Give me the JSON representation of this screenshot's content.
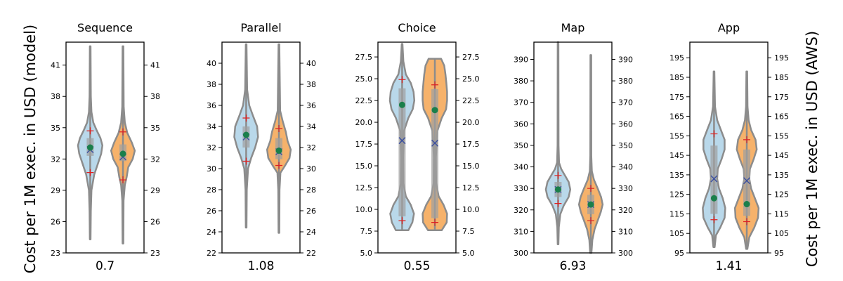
{
  "figure": {
    "ylabel_left": "Cost per 1M exec. in USD (model)",
    "ylabel_right": "Cost per 1M exec. in USD (AWS)"
  },
  "colors": {
    "left_violin": "#b9d8ea",
    "right_violin": "#f6b26b",
    "outline": "#8c8c8c",
    "box": "#a0a0a0",
    "median": "#1a7f4b",
    "mean": "#3b4fa0",
    "percentile": "#e02020"
  },
  "chart_data": [
    {
      "type": "violin",
      "title": "Sequence",
      "xlabel": "0.7",
      "ylim": [
        23,
        43.2
      ],
      "yticks": [
        23,
        26,
        29,
        32,
        35,
        38,
        41
      ],
      "right_yticks": [
        23,
        26,
        29,
        32,
        35,
        38,
        41
      ],
      "series": [
        {
          "min": 24.3,
          "max": 42.8,
          "q1": 32.3,
          "q3": 34.0,
          "median": 33.1,
          "mean": 32.9,
          "p_low": 30.7,
          "p_high": 34.7,
          "shape": [
            [
              24.3,
              0.03
            ],
            [
              27,
              0.05
            ],
            [
              29,
              0.1
            ],
            [
              30.5,
              0.32
            ],
            [
              31.5,
              0.6
            ],
            [
              32.5,
              0.88
            ],
            [
              33.3,
              0.98
            ],
            [
              34,
              0.82
            ],
            [
              34.8,
              0.5
            ],
            [
              35.5,
              0.25
            ],
            [
              36.5,
              0.1
            ],
            [
              38,
              0.05
            ],
            [
              42.8,
              0.03
            ]
          ]
        },
        {
          "min": 23.9,
          "max": 42.8,
          "q1": 31.8,
          "q3": 33.4,
          "median": 32.5,
          "mean": 32.2,
          "p_low": 30.0,
          "p_high": 34.6,
          "shape": [
            [
              23.9,
              0.03
            ],
            [
              28,
              0.05
            ],
            [
              29.5,
              0.15
            ],
            [
              30.3,
              0.3
            ],
            [
              31.2,
              0.42
            ],
            [
              32,
              0.78
            ],
            [
              32.8,
              0.95
            ],
            [
              33.6,
              0.7
            ],
            [
              34.5,
              0.35
            ],
            [
              35.5,
              0.15
            ],
            [
              37,
              0.06
            ],
            [
              42.8,
              0.03
            ]
          ]
        }
      ]
    },
    {
      "type": "violin",
      "title": "Parallel",
      "xlabel": "1.08",
      "ylim": [
        22,
        42
      ],
      "yticks": [
        22,
        24,
        26,
        28,
        30,
        32,
        34,
        36,
        38,
        40
      ],
      "right_yticks": [
        22,
        24,
        26,
        28,
        30,
        32,
        34,
        36,
        38,
        40
      ],
      "series": [
        {
          "min": 24.4,
          "max": 41.8,
          "q1": 32.0,
          "q3": 34.0,
          "median": 33.2,
          "mean": 33.0,
          "p_low": 30.7,
          "p_high": 34.8,
          "shape": [
            [
              24.4,
              0.03
            ],
            [
              28,
              0.05
            ],
            [
              30,
              0.15
            ],
            [
              31,
              0.4
            ],
            [
              32,
              0.72
            ],
            [
              33,
              0.95
            ],
            [
              34,
              0.88
            ],
            [
              35,
              0.55
            ],
            [
              36,
              0.25
            ],
            [
              37.5,
              0.08
            ],
            [
              41.8,
              0.03
            ]
          ]
        },
        {
          "min": 23.9,
          "max": 41.8,
          "q1": 30.9,
          "q3": 32.9,
          "median": 31.7,
          "mean": 31.6,
          "p_low": 30.3,
          "p_high": 33.8,
          "shape": [
            [
              23.9,
              0.03
            ],
            [
              28,
              0.05
            ],
            [
              29.6,
              0.12
            ],
            [
              30.2,
              0.45
            ],
            [
              31,
              0.85
            ],
            [
              31.8,
              0.95
            ],
            [
              32.6,
              0.7
            ],
            [
              33.5,
              0.55
            ],
            [
              34.5,
              0.3
            ],
            [
              35.5,
              0.1
            ],
            [
              41.8,
              0.03
            ]
          ]
        }
      ]
    },
    {
      "type": "violin",
      "title": "Choice",
      "xlabel": "0.55",
      "ylim": [
        5,
        29.2
      ],
      "yticks": [
        5.0,
        7.5,
        10.0,
        12.5,
        15.0,
        17.5,
        20.0,
        22.5,
        25.0,
        27.5
      ],
      "right_yticks": [
        5.0,
        7.5,
        10.0,
        12.5,
        15.0,
        17.5,
        20.0,
        22.5,
        25.0,
        27.5
      ],
      "series": [
        {
          "min": 7.6,
          "max": 29.0,
          "q1": 9.2,
          "q3": 23.9,
          "median": 22.0,
          "mean": 17.9,
          "p_low": 8.7,
          "p_high": 24.9,
          "shape": [
            [
              7.6,
              0.5
            ],
            [
              8.5,
              0.82
            ],
            [
              9.5,
              0.95
            ],
            [
              10.5,
              0.7
            ],
            [
              11.5,
              0.3
            ],
            [
              13,
              0.1
            ],
            [
              16,
              0.08
            ],
            [
              19,
              0.15
            ],
            [
              20.5,
              0.5
            ],
            [
              21.5,
              0.85
            ],
            [
              22.5,
              0.98
            ],
            [
              23.5,
              0.92
            ],
            [
              24.5,
              0.7
            ],
            [
              25.5,
              0.3
            ],
            [
              27,
              0.1
            ],
            [
              29,
              0.03
            ]
          ]
        },
        {
          "min": 7.6,
          "max": 27.3,
          "q1": 9.0,
          "q3": 23.8,
          "median": 21.4,
          "mean": 17.6,
          "p_low": 8.5,
          "p_high": 24.3,
          "shape": [
            [
              7.6,
              0.55
            ],
            [
              8.5,
              0.95
            ],
            [
              9.5,
              0.98
            ],
            [
              10.5,
              0.7
            ],
            [
              11.5,
              0.3
            ],
            [
              13,
              0.1
            ],
            [
              16,
              0.08
            ],
            [
              19,
              0.2
            ],
            [
              20.5,
              0.55
            ],
            [
              21.5,
              0.9
            ],
            [
              22.5,
              0.98
            ],
            [
              23.5,
              0.98
            ],
            [
              24.5,
              0.92
            ],
            [
              25.5,
              0.85
            ],
            [
              26.5,
              0.75
            ],
            [
              27.3,
              0.5
            ]
          ]
        }
      ]
    },
    {
      "type": "violin",
      "title": "Map",
      "xlabel": "6.93",
      "ylim": [
        300,
        398
      ],
      "yticks": [
        300,
        310,
        320,
        330,
        340,
        350,
        360,
        370,
        380,
        390
      ],
      "right_yticks": [
        300,
        310,
        320,
        330,
        340,
        350,
        360,
        370,
        380,
        390
      ],
      "series": [
        {
          "min": 304,
          "max": 398,
          "q1": 326,
          "q3": 333,
          "median": 329.5,
          "mean": 329.5,
          "p_low": 323,
          "p_high": 336,
          "shape": [
            [
              304,
              0.03
            ],
            [
              312,
              0.06
            ],
            [
              318,
              0.18
            ],
            [
              322,
              0.45
            ],
            [
              326,
              0.85
            ],
            [
              329.5,
              0.98
            ],
            [
              333,
              0.85
            ],
            [
              336,
              0.55
            ],
            [
              339,
              0.25
            ],
            [
              342,
              0.08
            ],
            [
              350,
              0.04
            ],
            [
              398,
              0.03
            ]
          ]
        },
        {
          "min": 300,
          "max": 392,
          "q1": 318,
          "q3": 327,
          "median": 322.5,
          "mean": 322.5,
          "p_low": 315,
          "p_high": 330,
          "shape": [
            [
              300,
              0.05
            ],
            [
              306,
              0.12
            ],
            [
              311,
              0.3
            ],
            [
              315,
              0.55
            ],
            [
              319,
              0.8
            ],
            [
              322.5,
              0.95
            ],
            [
              326,
              0.82
            ],
            [
              330,
              0.55
            ],
            [
              334,
              0.25
            ],
            [
              338,
              0.08
            ],
            [
              345,
              0.04
            ],
            [
              392,
              0.03
            ]
          ]
        }
      ]
    },
    {
      "type": "violin",
      "title": "App",
      "xlabel": "1.41",
      "ylim": [
        95,
        203
      ],
      "yticks": [
        95,
        105,
        115,
        125,
        135,
        145,
        155,
        165,
        175,
        185,
        195
      ],
      "right_yticks": [
        95,
        105,
        115,
        125,
        135,
        145,
        155,
        165,
        175,
        185,
        195
      ],
      "series": [
        {
          "min": 98,
          "max": 188,
          "q1": 115,
          "q3": 150,
          "median": 123,
          "mean": 133,
          "p_low": 112,
          "p_high": 156,
          "shape": [
            [
              98,
              0.05
            ],
            [
              104,
              0.15
            ],
            [
              108,
              0.5
            ],
            [
              113,
              0.85
            ],
            [
              118,
              0.9
            ],
            [
              123,
              0.7
            ],
            [
              128,
              0.4
            ],
            [
              133,
              0.25
            ],
            [
              138,
              0.3
            ],
            [
              143,
              0.6
            ],
            [
              148,
              0.85
            ],
            [
              153,
              0.85
            ],
            [
              158,
              0.55
            ],
            [
              163,
              0.25
            ],
            [
              170,
              0.08
            ],
            [
              188,
              0.03
            ]
          ]
        },
        {
          "min": 97,
          "max": 188,
          "q1": 114,
          "q3": 148,
          "median": 120,
          "mean": 132,
          "p_low": 111,
          "p_high": 153,
          "shape": [
            [
              97,
              0.05
            ],
            [
              103,
              0.2
            ],
            [
              108,
              0.6
            ],
            [
              113,
              0.9
            ],
            [
              118,
              0.95
            ],
            [
              123,
              0.65
            ],
            [
              128,
              0.35
            ],
            [
              133,
              0.2
            ],
            [
              138,
              0.25
            ],
            [
              143,
              0.55
            ],
            [
              148,
              0.8
            ],
            [
              153,
              0.7
            ],
            [
              158,
              0.35
            ],
            [
              163,
              0.15
            ],
            [
              170,
              0.06
            ],
            [
              188,
              0.03
            ]
          ]
        }
      ]
    }
  ]
}
